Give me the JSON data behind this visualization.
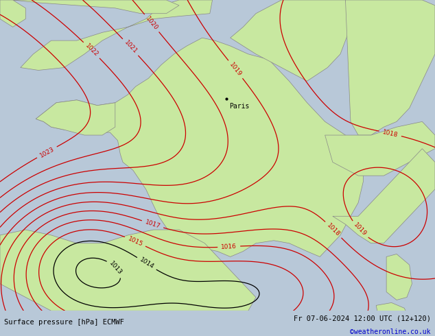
{
  "title_left": "Surface pressure [hPa] ECMWF",
  "title_right": "Fr 07-06-2024 12:00 UTC (12+120)",
  "copyright": "©weatheronline.co.uk",
  "figsize": [
    6.34,
    4.9
  ],
  "dpi": 100,
  "land_color": "#c8e8a0",
  "sea_color": "#b8c8d8",
  "coast_color": "#888888",
  "isobar_color_red": "#cc0000",
  "isobar_color_black": "#000000",
  "isobar_color_blue": "#0000bb",
  "bottom_bar_color": "#ffffff",
  "bottom_text_color": "#000000",
  "copyright_color": "#0000cc",
  "paris_label": "Paris",
  "paris_lon": 2.35,
  "paris_lat": 48.85,
  "map_xlim": [
    -6.5,
    10.5
  ],
  "map_ylim": [
    41.0,
    52.5
  ]
}
